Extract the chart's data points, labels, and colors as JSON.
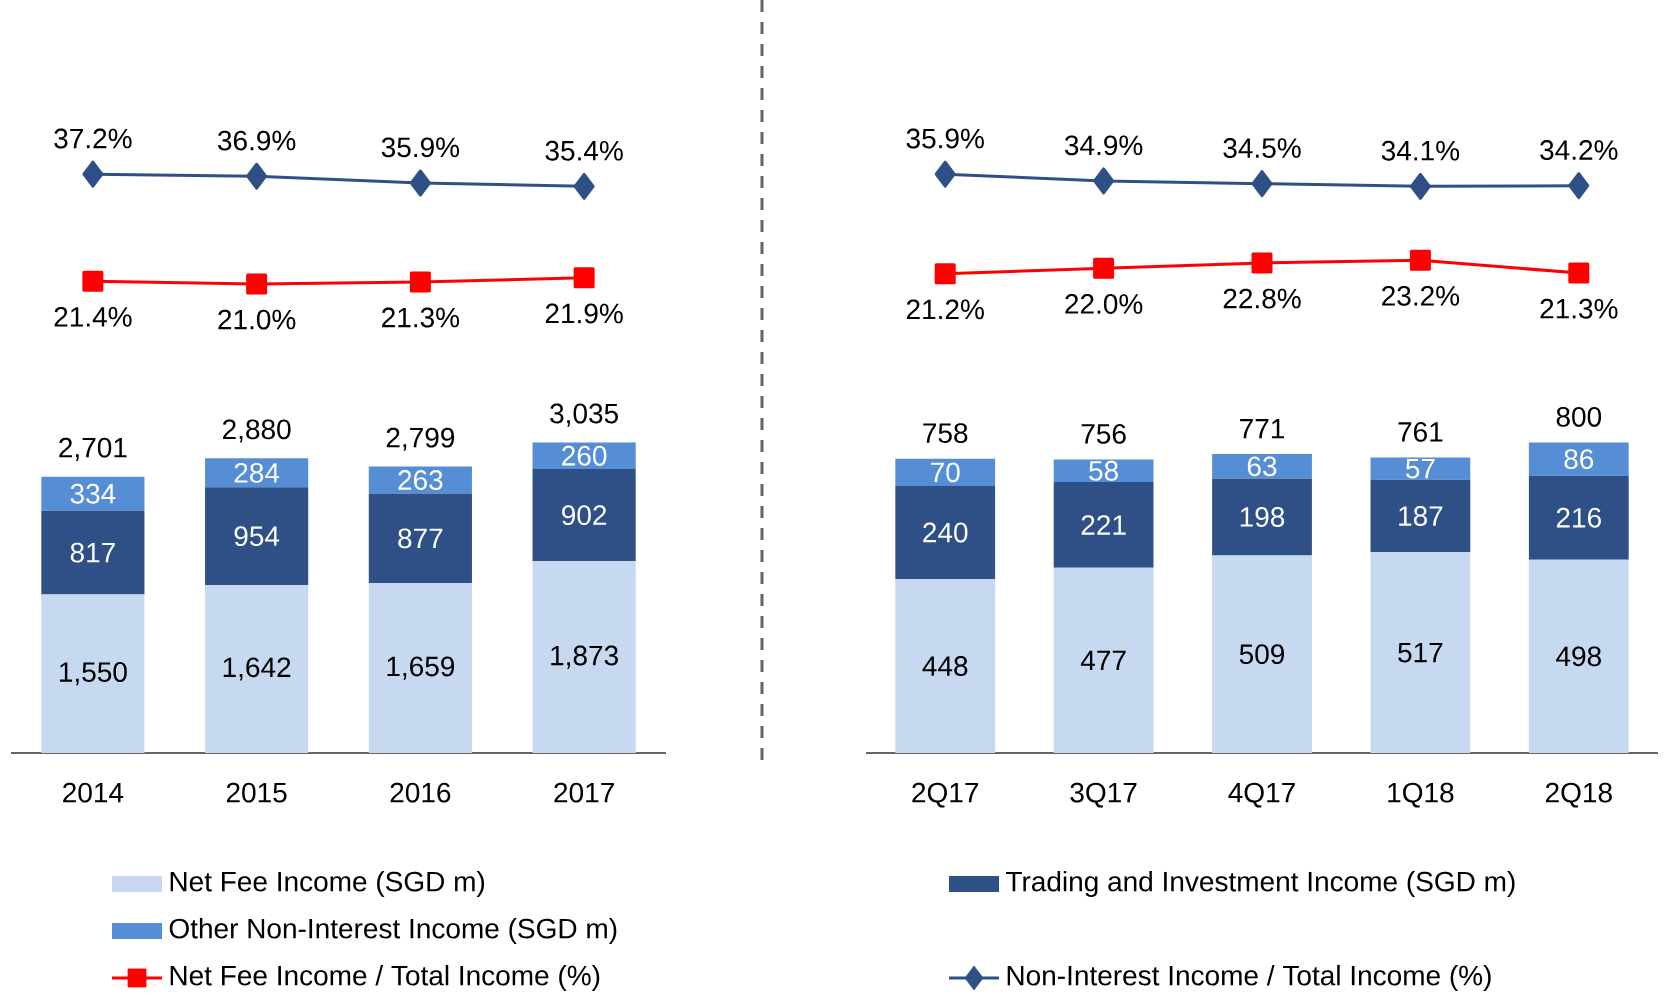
{
  "chart_data": [
    {
      "type": "line",
      "legend": "bottom",
      "categories": [
        null,
        null,
        null,
        null
      ],
      "series": [
        {
          "name": "Net Fee Income / Total Income (%)",
          "marker": "square",
          "color": "#ff0000",
          "values": [
            21.4,
            21.0,
            21.3,
            21.9
          ],
          "value_labels": [
            "21.4%",
            "21.0%",
            "21.3%",
            "21.9%"
          ]
        },
        {
          "name": "Non-Interest Income / Total Income (%)",
          "marker": "diamond",
          "color": "#2f5086",
          "values": [
            37.2,
            36.9,
            35.9,
            35.4
          ],
          "value_labels": [
            "37.2%",
            "36.9%",
            "35.9%",
            "35.4%"
          ]
        }
      ]
    },
    {
      "type": "bar",
      "stacked": true,
      "legend": "bottom",
      "categories": [
        "2014",
        "2015",
        "2016",
        "2017"
      ],
      "totals": [
        "2,701",
        "2,880",
        "2,799",
        "3,035"
      ],
      "series": [
        {
          "name": "Net Fee Income (SGD m)",
          "color": "#c6d9f1",
          "values": [
            1550,
            1642,
            1659,
            1873
          ],
          "value_labels": [
            "1,550",
            "1,642",
            "1,659",
            "1,873"
          ]
        },
        {
          "name": "Trading and Investment Income (SGD m)",
          "color": "#2f5086",
          "values": [
            817,
            954,
            877,
            902
          ],
          "value_labels": [
            "817",
            "954",
            "877",
            "902"
          ]
        },
        {
          "name": "Other Non-Interest Income (SGD m)",
          "color": "#558ed5",
          "values": [
            334,
            284,
            263,
            260
          ],
          "value_labels": [
            "334",
            "284",
            "263",
            "260"
          ]
        }
      ]
    },
    {
      "type": "line",
      "categories": [
        null,
        null,
        null,
        null,
        null
      ],
      "series": [
        {
          "marker": "square",
          "color": "#ff0000",
          "values": [
            21.2,
            22.0,
            22.8,
            23.2,
            21.3
          ],
          "value_labels": [
            "21.2%",
            "22.0%",
            "22.8%",
            "23.2%",
            "21.3%"
          ]
        },
        {
          "marker": "diamond",
          "color": "#2f5086",
          "values": [
            35.9,
            34.9,
            34.5,
            34.1,
            34.2
          ],
          "value_labels": [
            "35.9%",
            "34.9%",
            "34.5%",
            "34.1%",
            "34.2%"
          ]
        }
      ]
    },
    {
      "type": "bar",
      "stacked": true,
      "categories": [
        "2Q17",
        "3Q17",
        "4Q17",
        "1Q18",
        "2Q18"
      ],
      "totals": [
        "758",
        "756",
        "771",
        "761",
        "800"
      ],
      "series": [
        {
          "color": "#c6d9f1",
          "values": [
            448,
            477,
            509,
            517,
            498
          ],
          "value_labels": [
            "448",
            "477",
            "509",
            "517",
            "498"
          ]
        },
        {
          "color": "#2f5086",
          "values": [
            240,
            221,
            198,
            187,
            216
          ],
          "value_labels": [
            "240",
            "221",
            "198",
            "187",
            "216"
          ]
        },
        {
          "color": "#558ed5",
          "values": [
            70,
            58,
            63,
            57,
            86
          ],
          "value_labels": [
            "70",
            "58",
            "63",
            "57",
            "86"
          ]
        }
      ]
    }
  ]
}
